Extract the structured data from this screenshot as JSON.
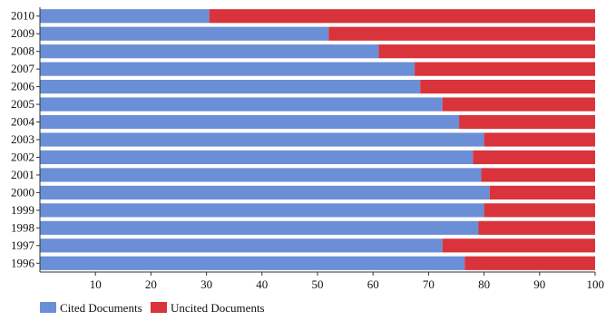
{
  "chart_data": {
    "type": "bar",
    "orientation": "horizontal",
    "stacked": true,
    "categories": [
      "2010",
      "2009",
      "2008",
      "2007",
      "2006",
      "2005",
      "2004",
      "2003",
      "2002",
      "2001",
      "2000",
      "1999",
      "1998",
      "1997",
      "1996"
    ],
    "series": [
      {
        "name": "Cited Documents",
        "color": "#6b8fd6",
        "values": [
          30.5,
          52,
          61,
          67.5,
          68.5,
          72.5,
          75.5,
          80,
          78,
          79.5,
          81,
          80,
          79,
          72.5,
          76.5
        ]
      },
      {
        "name": "Uncited Documents",
        "color": "#d9333b",
        "values": [
          69.5,
          48,
          39,
          32.5,
          31.5,
          27.5,
          24.5,
          20,
          22,
          20.5,
          19,
          20,
          21,
          27.5,
          23.5
        ]
      }
    ],
    "xlim": [
      0,
      100
    ],
    "x_ticks": [
      10,
      20,
      30,
      40,
      50,
      60,
      70,
      80,
      90,
      100
    ],
    "title": "",
    "xlabel": "",
    "ylabel": "",
    "grid": false,
    "legend_position": "bottom-left"
  }
}
